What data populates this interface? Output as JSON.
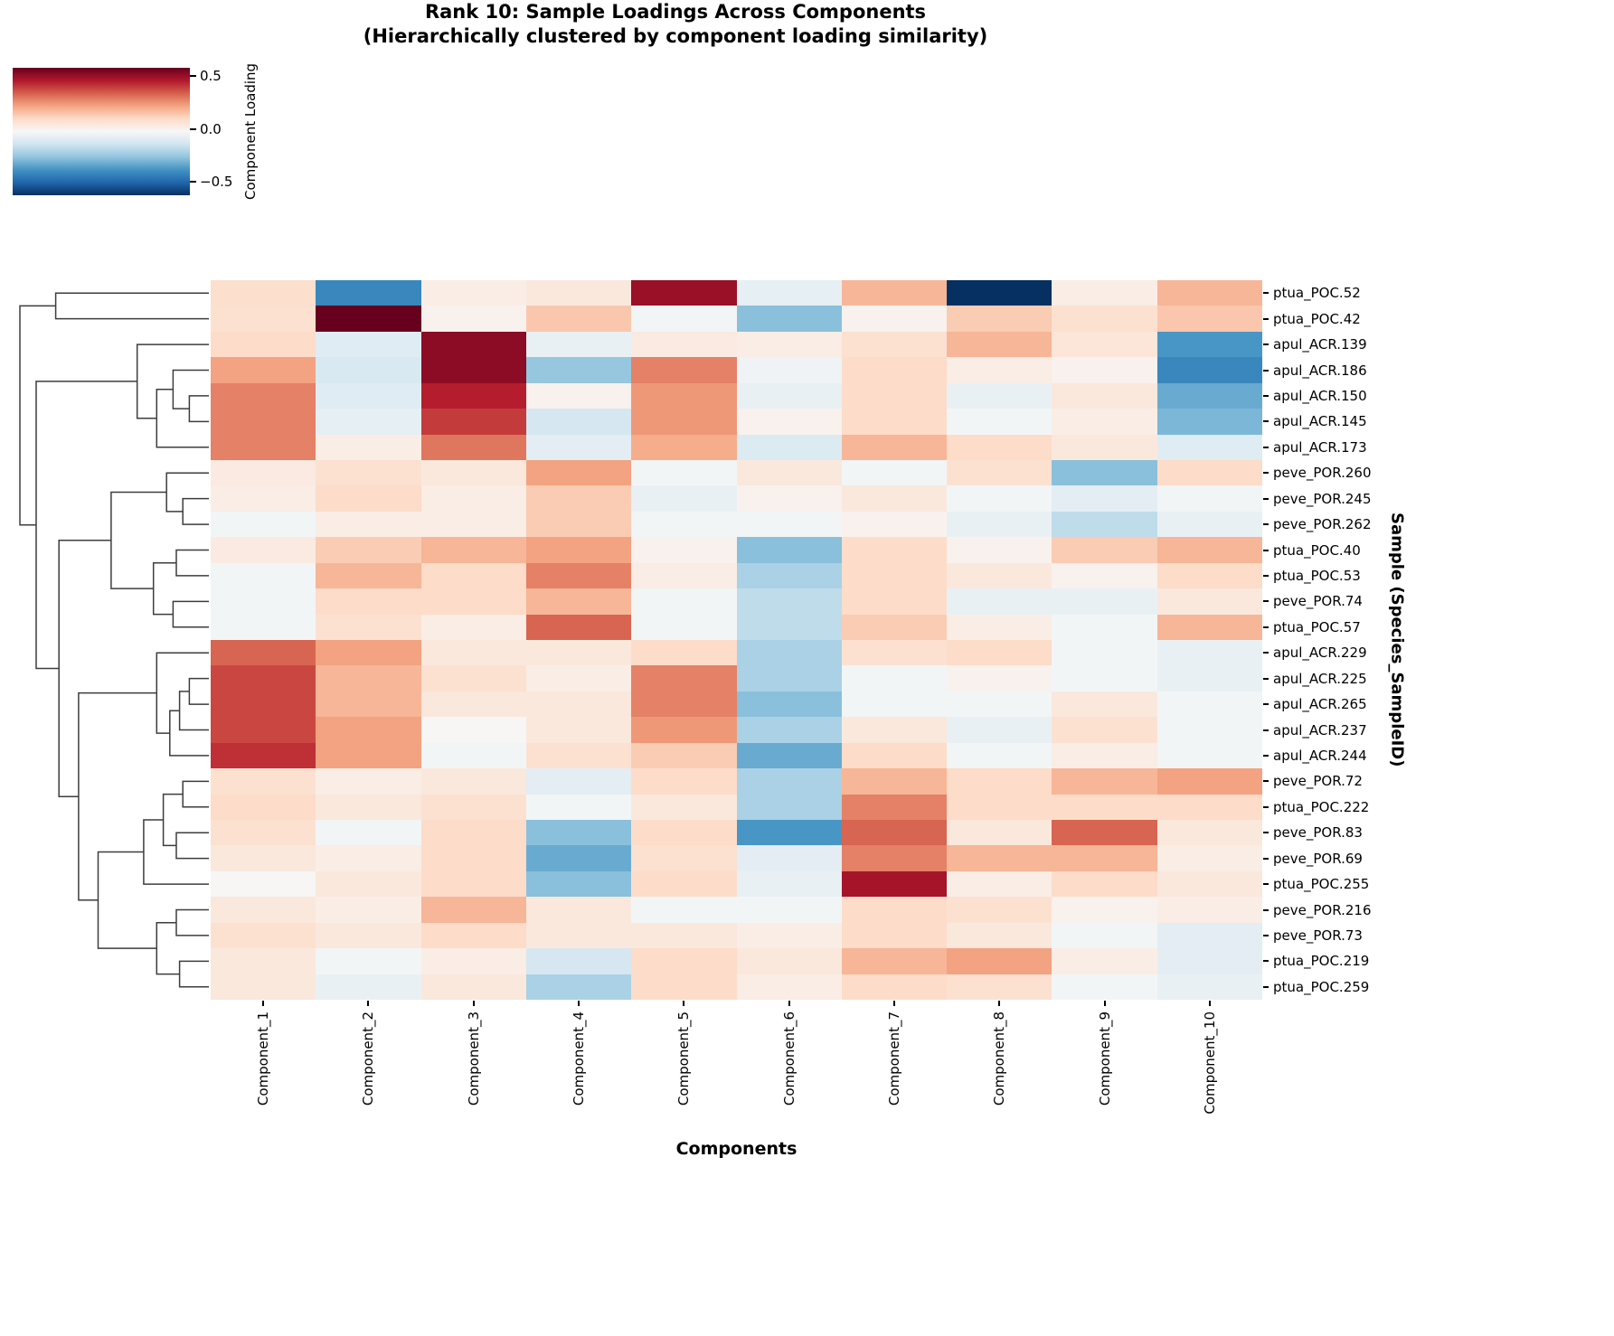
{
  "chart_data": {
    "type": "heatmap",
    "title": "Rank 10: Sample Loadings Across Components",
    "subtitle": "(Hierarchically clustered by component loading similarity)",
    "xlabel": "Components",
    "ylabel": "Sample (Species_SampleID)",
    "colorbar_label": "Component Loading",
    "colorbar_ticks": [
      {
        "value": 0.5,
        "label": "0.5"
      },
      {
        "value": 0.0,
        "label": "0.0"
      },
      {
        "value": -0.5,
        "label": "−0.5"
      }
    ],
    "vmin": -0.63,
    "vmax": 0.58,
    "colormap": "RdBu_r",
    "colormap_stops": [
      [
        0.0,
        "#053061"
      ],
      [
        0.1,
        "#2166ac"
      ],
      [
        0.2,
        "#4393c3"
      ],
      [
        0.3,
        "#92c5de"
      ],
      [
        0.4,
        "#d1e5f0"
      ],
      [
        0.5,
        "#f7f7f7"
      ],
      [
        0.6,
        "#fddbc7"
      ],
      [
        0.7,
        "#f4a582"
      ],
      [
        0.8,
        "#d6604d"
      ],
      [
        0.9,
        "#b2182b"
      ],
      [
        1.0,
        "#67001f"
      ]
    ],
    "columns": [
      "Component_1",
      "Component_2",
      "Component_3",
      "Component_4",
      "Component_5",
      "Component_6",
      "Component_7",
      "Component_8",
      "Component_9",
      "Component_10"
    ],
    "rows": [
      "ptua_POC.52",
      "ptua_POC.42",
      "apul_ACR.139",
      "apul_ACR.186",
      "apul_ACR.150",
      "apul_ACR.145",
      "apul_ACR.173",
      "peve_POR.260",
      "peve_POR.245",
      "peve_POR.262",
      "ptua_POC.40",
      "ptua_POC.53",
      "peve_POR.74",
      "ptua_POC.57",
      "apul_ACR.229",
      "apul_ACR.225",
      "apul_ACR.265",
      "apul_ACR.237",
      "apul_ACR.244",
      "peve_POR.72",
      "ptua_POC.222",
      "peve_POR.83",
      "peve_POR.69",
      "ptua_POC.255",
      "peve_POR.216",
      "peve_POR.73",
      "ptua_POC.219",
      "ptua_POC.259"
    ],
    "values": [
      [
        0.08,
        -0.42,
        0.02,
        0.04,
        0.5,
        -0.08,
        0.18,
        -0.63,
        0.02,
        0.18
      ],
      [
        0.07,
        0.58,
        0.0,
        0.14,
        -0.04,
        -0.28,
        0.0,
        0.13,
        0.07,
        0.14
      ],
      [
        0.09,
        -0.1,
        0.52,
        -0.07,
        0.03,
        0.02,
        0.07,
        0.18,
        0.05,
        -0.38
      ],
      [
        0.22,
        -0.12,
        0.52,
        -0.26,
        0.28,
        -0.05,
        0.09,
        0.02,
        0.0,
        -0.42
      ],
      [
        0.28,
        -0.1,
        0.45,
        0.0,
        0.24,
        -0.07,
        0.09,
        -0.07,
        0.04,
        -0.33
      ],
      [
        0.28,
        -0.08,
        0.4,
        -0.13,
        0.24,
        0.0,
        0.09,
        -0.04,
        0.02,
        -0.3
      ],
      [
        0.28,
        0.02,
        0.3,
        -0.09,
        0.2,
        -0.11,
        0.18,
        0.09,
        0.04,
        -0.1
      ],
      [
        0.03,
        0.07,
        0.04,
        0.22,
        -0.04,
        0.04,
        -0.04,
        0.07,
        -0.28,
        0.09
      ],
      [
        0.02,
        0.09,
        0.02,
        0.13,
        -0.07,
        0.0,
        0.04,
        -0.04,
        -0.09,
        -0.04
      ],
      [
        -0.04,
        0.02,
        0.02,
        0.13,
        -0.04,
        -0.04,
        0.0,
        -0.07,
        -0.18,
        -0.07
      ],
      [
        0.03,
        0.13,
        0.18,
        0.22,
        0.0,
        -0.28,
        0.09,
        0.0,
        0.13,
        0.18
      ],
      [
        -0.04,
        0.18,
        0.09,
        0.28,
        0.02,
        -0.22,
        0.09,
        0.04,
        0.0,
        0.09
      ],
      [
        -0.04,
        0.09,
        0.09,
        0.18,
        -0.04,
        -0.18,
        0.09,
        -0.07,
        -0.07,
        0.04
      ],
      [
        -0.04,
        0.07,
        0.02,
        0.33,
        -0.04,
        -0.18,
        0.13,
        0.02,
        -0.04,
        0.18
      ],
      [
        0.33,
        0.22,
        0.04,
        0.04,
        0.09,
        -0.22,
        0.07,
        0.09,
        -0.04,
        -0.07
      ],
      [
        0.38,
        0.18,
        0.07,
        0.02,
        0.28,
        -0.22,
        -0.04,
        0.0,
        -0.04,
        -0.07
      ],
      [
        0.38,
        0.18,
        0.04,
        0.04,
        0.28,
        -0.28,
        -0.04,
        -0.04,
        0.04,
        -0.04
      ],
      [
        0.38,
        0.22,
        -0.02,
        0.04,
        0.24,
        -0.22,
        0.04,
        -0.07,
        0.07,
        -0.04
      ],
      [
        0.42,
        0.22,
        -0.04,
        0.07,
        0.13,
        -0.33,
        0.09,
        -0.04,
        0.02,
        -0.04
      ],
      [
        0.07,
        0.02,
        0.04,
        -0.09,
        0.09,
        -0.22,
        0.18,
        0.09,
        0.18,
        0.22
      ],
      [
        0.09,
        0.04,
        0.07,
        -0.04,
        0.04,
        -0.22,
        0.28,
        0.09,
        0.09,
        0.09
      ],
      [
        0.07,
        -0.04,
        0.09,
        -0.28,
        0.09,
        -0.38,
        0.33,
        0.04,
        0.33,
        0.04
      ],
      [
        0.04,
        0.02,
        0.09,
        -0.33,
        0.07,
        -0.09,
        0.28,
        0.18,
        0.18,
        0.02
      ],
      [
        -0.02,
        0.04,
        0.09,
        -0.28,
        0.09,
        -0.07,
        0.48,
        0.02,
        0.09,
        0.04
      ],
      [
        0.04,
        0.02,
        0.18,
        0.04,
        -0.04,
        -0.04,
        0.09,
        0.07,
        0.0,
        0.02
      ],
      [
        0.07,
        0.04,
        0.09,
        0.04,
        0.04,
        0.02,
        0.09,
        0.04,
        -0.04,
        -0.09
      ],
      [
        0.04,
        -0.04,
        0.02,
        -0.13,
        0.09,
        0.04,
        0.18,
        0.22,
        0.02,
        -0.09
      ],
      [
        0.04,
        -0.07,
        0.04,
        -0.22,
        0.09,
        0.02,
        0.09,
        0.07,
        -0.04,
        -0.07
      ]
    ],
    "dendrogram": {
      "max_distance": 0.58,
      "tree": {
        "d": 0.58,
        "children": [
          {
            "d": 0.47,
            "children": [
              {
                "leaf": 0
              },
              {
                "leaf": 1
              }
            ]
          },
          {
            "d": 0.53,
            "children": [
              {
                "d": 0.22,
                "children": [
                  {
                    "leaf": 2
                  },
                  {
                    "d": 0.16,
                    "children": [
                      {
                        "d": 0.11,
                        "children": [
                          {
                            "leaf": 3
                          },
                          {
                            "d": 0.06,
                            "children": [
                              {
                                "leaf": 4
                              },
                              {
                                "leaf": 5
                              }
                            ]
                          }
                        ]
                      },
                      {
                        "leaf": 6
                      }
                    ]
                  }
                ]
              },
              {
                "d": 0.46,
                "children": [
                  {
                    "d": 0.3,
                    "children": [
                      {
                        "d": 0.13,
                        "children": [
                          {
                            "leaf": 7
                          },
                          {
                            "d": 0.08,
                            "children": [
                              {
                                "leaf": 8
                              },
                              {
                                "leaf": 9
                              }
                            ]
                          }
                        ]
                      },
                      {
                        "d": 0.17,
                        "children": [
                          {
                            "d": 0.1,
                            "children": [
                              {
                                "leaf": 10
                              },
                              {
                                "leaf": 11
                              }
                            ]
                          },
                          {
                            "d": 0.11,
                            "children": [
                              {
                                "leaf": 12
                              },
                              {
                                "leaf": 13
                              }
                            ]
                          }
                        ]
                      }
                    ]
                  },
                  {
                    "d": 0.4,
                    "children": [
                      {
                        "d": 0.16,
                        "children": [
                          {
                            "leaf": 14
                          },
                          {
                            "d": 0.12,
                            "children": [
                              {
                                "d": 0.09,
                                "children": [
                                  {
                                    "d": 0.06,
                                    "children": [
                                      {
                                        "leaf": 15
                                      },
                                      {
                                        "leaf": 16
                                      }
                                    ]
                                  },
                                  {
                                    "leaf": 17
                                  }
                                ]
                              },
                              {
                                "leaf": 18
                              }
                            ]
                          }
                        ]
                      },
                      {
                        "d": 0.34,
                        "children": [
                          {
                            "d": 0.2,
                            "children": [
                              {
                                "d": 0.14,
                                "children": [
                                  {
                                    "d": 0.08,
                                    "children": [
                                      {
                                        "leaf": 19
                                      },
                                      {
                                        "leaf": 20
                                      }
                                    ]
                                  },
                                  {
                                    "d": 0.1,
                                    "children": [
                                      {
                                        "leaf": 21
                                      },
                                      {
                                        "leaf": 22
                                      }
                                    ]
                                  }
                                ]
                              },
                              {
                                "leaf": 23
                              }
                            ]
                          },
                          {
                            "d": 0.16,
                            "children": [
                              {
                                "d": 0.1,
                                "children": [
                                  {
                                    "leaf": 24
                                  },
                                  {
                                    "leaf": 25
                                  }
                                ]
                              },
                              {
                                "d": 0.09,
                                "children": [
                                  {
                                    "leaf": 26
                                  },
                                  {
                                    "leaf": 27
                                  }
                                ]
                              }
                            ]
                          }
                        ]
                      }
                    ]
                  }
                ]
              }
            ]
          }
        ]
      }
    }
  }
}
